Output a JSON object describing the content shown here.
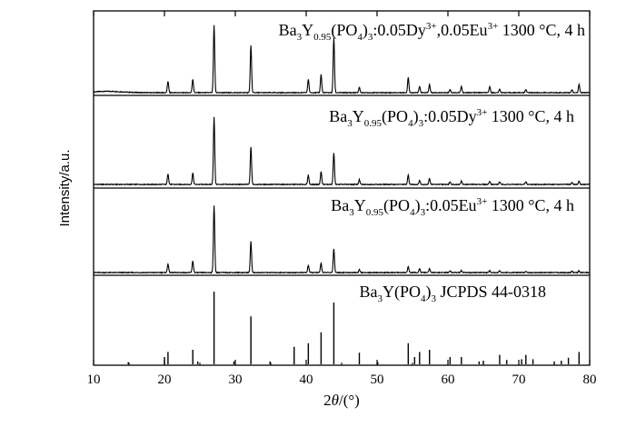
{
  "chart_data": {
    "type": "line",
    "xlabel": {
      "prefix": "2",
      "theta": "θ",
      "unit": "/(°)"
    },
    "ylabel": "Intensity/a.u.",
    "xlim": [
      10,
      80
    ],
    "xticks": [
      10,
      20,
      30,
      40,
      50,
      60,
      70,
      80
    ],
    "panels": [
      {
        "style": "line",
        "label": {
          "formula": [
            [
              "Ba",
              ""
            ],
            [
              "3",
              "sub"
            ],
            [
              "Y",
              ""
            ],
            [
              "0.95",
              "sub"
            ],
            [
              "(PO",
              ""
            ],
            [
              "4",
              "sub"
            ],
            [
              ")",
              ""
            ],
            [
              "3",
              "sub"
            ],
            [
              ":0.05Dy",
              ""
            ],
            [
              "3+",
              "sup"
            ],
            [
              ",0.05Eu",
              ""
            ],
            [
              "3+",
              "sup"
            ]
          ],
          "conditions": " 1300 °C, 4 h"
        },
        "peaks": [
          [
            20.5,
            0.17
          ],
          [
            24.0,
            0.2
          ],
          [
            27.0,
            1.0
          ],
          [
            32.2,
            0.7
          ],
          [
            40.3,
            0.2
          ],
          [
            42.1,
            0.27
          ],
          [
            43.9,
            0.82
          ],
          [
            47.5,
            0.08
          ],
          [
            54.4,
            0.23
          ],
          [
            56.0,
            0.09
          ],
          [
            57.4,
            0.12
          ],
          [
            60.3,
            0.05
          ],
          [
            61.9,
            0.09
          ],
          [
            65.9,
            0.09
          ],
          [
            67.3,
            0.05
          ],
          [
            71.0,
            0.05
          ],
          [
            77.5,
            0.04
          ],
          [
            78.5,
            0.12
          ]
        ]
      },
      {
        "style": "line",
        "label": {
          "formula": [
            [
              "Ba",
              ""
            ],
            [
              "3",
              "sub"
            ],
            [
              "Y",
              ""
            ],
            [
              "0.95",
              "sub"
            ],
            [
              "(PO",
              ""
            ],
            [
              "4",
              "sub"
            ],
            [
              ")",
              ""
            ],
            [
              "3",
              "sub"
            ],
            [
              ":0.05Dy",
              ""
            ],
            [
              "3+",
              "sup"
            ]
          ],
          "conditions": " 1300 °C, 4 h"
        },
        "peaks": [
          [
            20.5,
            0.16
          ],
          [
            24.0,
            0.17
          ],
          [
            27.0,
            1.0
          ],
          [
            32.2,
            0.56
          ],
          [
            40.3,
            0.14
          ],
          [
            42.1,
            0.19
          ],
          [
            43.9,
            0.47
          ],
          [
            47.5,
            0.07
          ],
          [
            54.4,
            0.14
          ],
          [
            56.0,
            0.06
          ],
          [
            57.4,
            0.09
          ],
          [
            60.3,
            0.04
          ],
          [
            61.9,
            0.05
          ],
          [
            65.9,
            0.05
          ],
          [
            67.3,
            0.04
          ],
          [
            71.0,
            0.04
          ],
          [
            77.5,
            0.03
          ],
          [
            78.5,
            0.05
          ]
        ]
      },
      {
        "style": "line",
        "label": {
          "formula": [
            [
              "Ba",
              ""
            ],
            [
              "3",
              "sub"
            ],
            [
              "Y",
              ""
            ],
            [
              "0.95",
              "sub"
            ],
            [
              "(PO",
              ""
            ],
            [
              "4",
              "sub"
            ],
            [
              ")",
              ""
            ],
            [
              "3",
              "sub"
            ],
            [
              ":0.05Eu",
              ""
            ],
            [
              "3+",
              "sup"
            ]
          ],
          "conditions": " 1300 °C, 4 h"
        },
        "peaks": [
          [
            20.5,
            0.13
          ],
          [
            24.0,
            0.17
          ],
          [
            27.0,
            1.0
          ],
          [
            32.2,
            0.46
          ],
          [
            40.3,
            0.11
          ],
          [
            42.1,
            0.14
          ],
          [
            43.9,
            0.35
          ],
          [
            47.5,
            0.04
          ],
          [
            54.4,
            0.09
          ],
          [
            56.0,
            0.06
          ],
          [
            57.4,
            0.06
          ],
          [
            60.3,
            0.03
          ],
          [
            61.9,
            0.03
          ],
          [
            65.9,
            0.03
          ],
          [
            67.3,
            0.03
          ],
          [
            71.0,
            0.02
          ],
          [
            77.5,
            0.02
          ],
          [
            78.5,
            0.03
          ]
        ]
      },
      {
        "style": "stick",
        "label": {
          "formula": [
            [
              "Ba",
              ""
            ],
            [
              "3",
              "sub"
            ],
            [
              "Y(PO",
              ""
            ],
            [
              "4",
              "sub"
            ],
            [
              ")",
              ""
            ],
            [
              "3",
              "sub"
            ]
          ],
          "conditions": " JCPDS 44-0318"
        },
        "peaks": [
          [
            14.9,
            0.03
          ],
          [
            20.0,
            0.1
          ],
          [
            20.5,
            0.17
          ],
          [
            24.0,
            0.2
          ],
          [
            24.7,
            0.04
          ],
          [
            27.0,
            1.0
          ],
          [
            29.8,
            0.04
          ],
          [
            32.2,
            0.66
          ],
          [
            34.9,
            0.04
          ],
          [
            38.3,
            0.24
          ],
          [
            40.3,
            0.29
          ],
          [
            42.1,
            0.44
          ],
          [
            43.9,
            0.85
          ],
          [
            47.5,
            0.16
          ],
          [
            50.1,
            0.03
          ],
          [
            54.4,
            0.29
          ],
          [
            55.3,
            0.1
          ],
          [
            56.0,
            0.17
          ],
          [
            57.4,
            0.2
          ],
          [
            60.3,
            0.1
          ],
          [
            61.9,
            0.1
          ],
          [
            64.4,
            0.04
          ],
          [
            65.0,
            0.05
          ],
          [
            67.3,
            0.13
          ],
          [
            68.3,
            0.06
          ],
          [
            70.4,
            0.07
          ],
          [
            71.0,
            0.13
          ],
          [
            72.0,
            0.07
          ],
          [
            75.0,
            0.04
          ],
          [
            76.0,
            0.05
          ],
          [
            77.0,
            0.09
          ],
          [
            78.5,
            0.17
          ]
        ]
      }
    ]
  }
}
